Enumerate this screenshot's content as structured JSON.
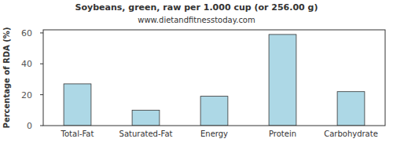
{
  "chart_data": {
    "type": "bar",
    "title": "Soybeans, green, raw per 1.000 cup (or 256.00 g)",
    "subtitle": "www.dietandfitnesstoday.com",
    "y_label": "Percentage of RDA (%)",
    "categories": [
      "Total-Fat",
      "Saturated-Fat",
      "Energy",
      "Protein",
      "Carbohydrate"
    ],
    "values": [
      27,
      10,
      19,
      59,
      22
    ],
    "color": "#add8e6",
    "ylim": [
      0,
      62
    ],
    "yticks": [
      0,
      20,
      40,
      60
    ],
    "grid": false
  }
}
